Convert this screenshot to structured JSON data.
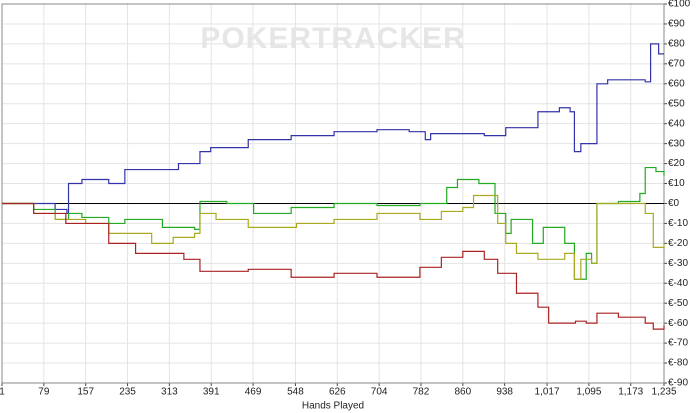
{
  "chart_data": {
    "type": "line",
    "watermark": "POKERTRACKER",
    "x_label": "Hands Played",
    "xlim": [
      1,
      1235
    ],
    "ylim": [
      -90,
      100
    ],
    "grid": true,
    "xticks": [
      1,
      79,
      157,
      235,
      313,
      391,
      469,
      548,
      626,
      704,
      782,
      860,
      938,
      {
        "value": 1017,
        "label": "1,017"
      },
      {
        "value": 1095,
        "label": "1,095"
      },
      {
        "value": 1173,
        "label": "1,173"
      },
      {
        "value": 1235,
        "label": "1,235"
      }
    ],
    "yticks": [
      {
        "value": -90,
        "label": "€-90"
      },
      {
        "value": -80,
        "label": "€-80"
      },
      {
        "value": -70,
        "label": "€-70"
      },
      {
        "value": -60,
        "label": "€-60"
      },
      {
        "value": -50,
        "label": "€-50"
      },
      {
        "value": -40,
        "label": "€-40"
      },
      {
        "value": -30,
        "label": "€-30"
      },
      {
        "value": -20,
        "label": "€-20"
      },
      {
        "value": -10,
        "label": "€-10"
      },
      {
        "value": 0,
        "label": "€0"
      },
      {
        "value": 10,
        "label": "€10"
      },
      {
        "value": 20,
        "label": "€20"
      },
      {
        "value": 30,
        "label": "€30"
      },
      {
        "value": 40,
        "label": "€40"
      },
      {
        "value": 50,
        "label": "€50"
      },
      {
        "value": 60,
        "label": "€60"
      },
      {
        "value": 70,
        "label": "€70"
      },
      {
        "value": 80,
        "label": "€80"
      },
      {
        "value": 90,
        "label": "€90"
      },
      {
        "value": 100,
        "label": "€100"
      }
    ],
    "series": [
      {
        "color": "#3333aa",
        "x": [
          1,
          100,
          122,
          125,
          150,
          200,
          230,
          300,
          330,
          370,
          390,
          460,
          540,
          620,
          700,
          760,
          790,
          800,
          900,
          940,
          1000,
          1040,
          1060,
          1068,
          1080,
          1100,
          1110,
          1130,
          1200,
          1210,
          1220,
          1225,
          1235
        ],
        "values": [
          0,
          -3,
          -5,
          10,
          12,
          10,
          17,
          17,
          20,
          26,
          28,
          32,
          34,
          36,
          37,
          36,
          32,
          35,
          34,
          38,
          46,
          48,
          46,
          26,
          30,
          30,
          60,
          62,
          61,
          80,
          80,
          75,
          75
        ]
      },
      {
        "color": "#22aa22",
        "x": [
          1,
          60,
          100,
          125,
          150,
          200,
          230,
          300,
          360,
          370,
          420,
          470,
          540,
          620,
          700,
          780,
          830,
          850,
          890,
          920,
          940,
          950,
          990,
          1010,
          1050,
          1068,
          1090,
          1100,
          1110,
          1150,
          1190,
          1200,
          1220,
          1235
        ],
        "values": [
          0,
          -3,
          -8,
          -5,
          -7,
          -10,
          -8,
          -12,
          -13,
          1,
          0,
          -5,
          -2,
          0,
          -1,
          0,
          8,
          12,
          10,
          -5,
          -15,
          -8,
          -20,
          -12,
          -20,
          -38,
          -25,
          -30,
          0,
          1,
          5,
          18,
          16,
          14
        ]
      },
      {
        "color": "#aaaa22",
        "x": [
          1,
          60,
          100,
          157,
          200,
          280,
          320,
          360,
          370,
          400,
          460,
          550,
          620,
          700,
          780,
          820,
          860,
          880,
          925,
          940,
          960,
          1000,
          1050,
          1068,
          1080,
          1100,
          1110,
          1180,
          1200,
          1215,
          1235
        ],
        "values": [
          0,
          -5,
          -8,
          -10,
          -15,
          -20,
          -17,
          -15,
          -5,
          -8,
          -12,
          -10,
          -8,
          -5,
          -8,
          -4,
          -2,
          4,
          -10,
          -20,
          -25,
          -28,
          -25,
          -38,
          -28,
          -30,
          0,
          0,
          -5,
          -22,
          -20
        ]
      },
      {
        "color": "#aa2222",
        "x": [
          1,
          60,
          120,
          200,
          250,
          340,
          370,
          460,
          540,
          620,
          700,
          780,
          820,
          860,
          900,
          925,
          960,
          1000,
          1020,
          1070,
          1090,
          1110,
          1150,
          1200,
          1215,
          1235
        ],
        "values": [
          0,
          -5,
          -10,
          -20,
          -25,
          -28,
          -34,
          -33,
          -37,
          -35,
          -37,
          -32,
          -27,
          -24,
          -28,
          -35,
          -45,
          -52,
          -60,
          -59,
          -60,
          -55,
          -57,
          -60,
          -63,
          -61
        ]
      }
    ]
  }
}
